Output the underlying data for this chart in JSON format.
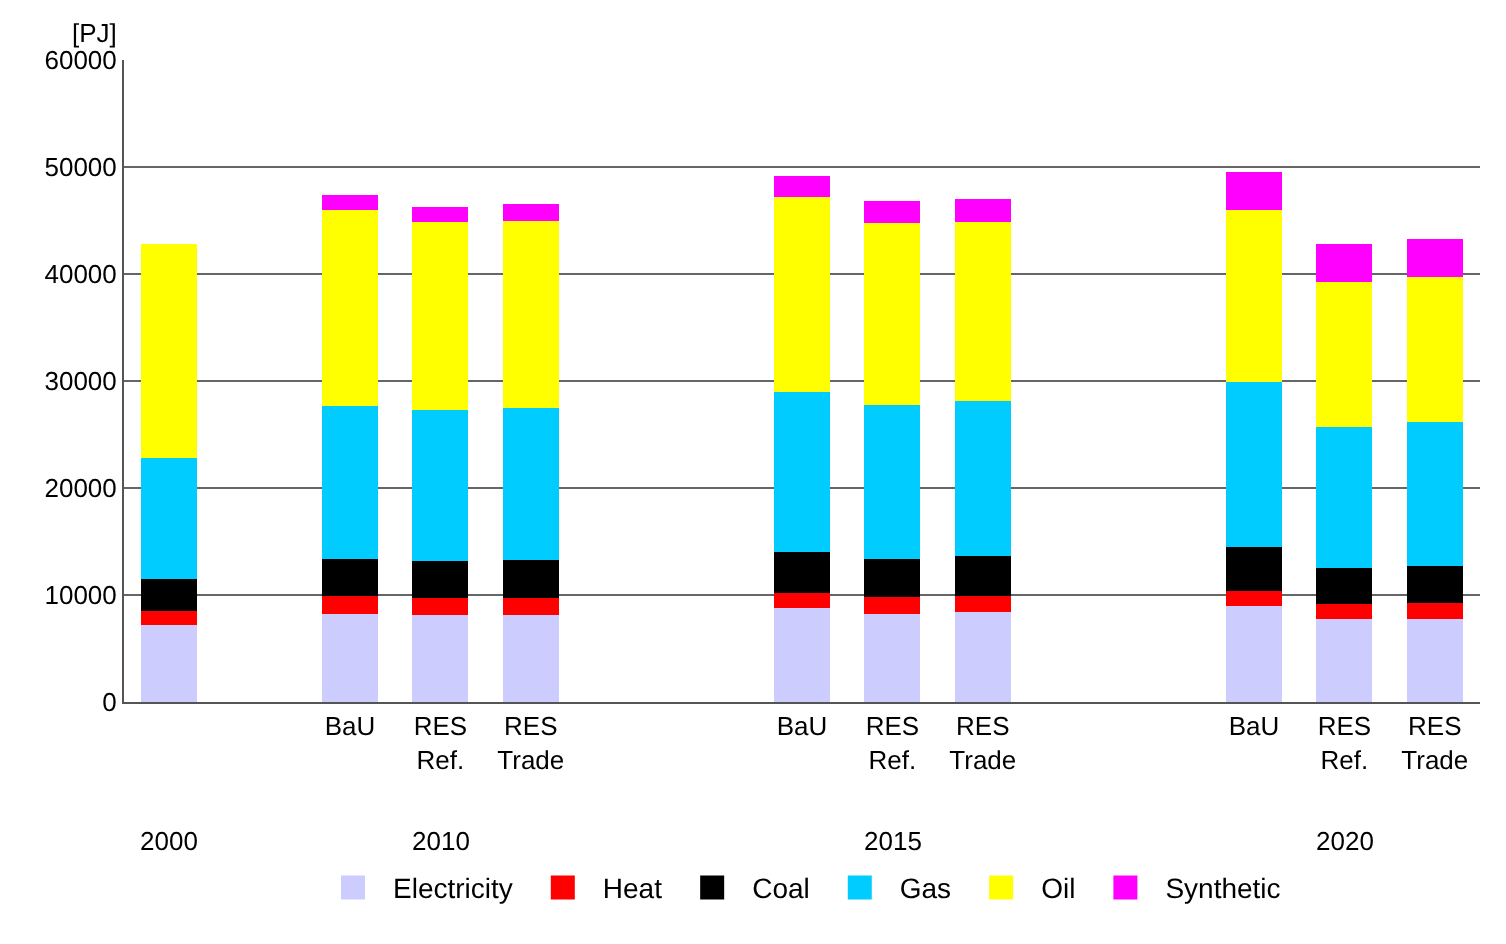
{
  "chart_data": {
    "type": "bar",
    "stacked": true,
    "ylabel": "[PJ]",
    "categories": [
      null,
      null,
      "BaU",
      "RES Ref.",
      "RES Trade",
      null,
      null,
      "BaU",
      "RES Ref.",
      "RES Trade",
      null,
      null,
      "BaU",
      "RES Ref.",
      "RES Trade"
    ],
    "series": [
      {
        "name": "Electricity",
        "color": "#ccccff",
        "values": [
          7200,
          null,
          8250,
          8100,
          8100,
          null,
          null,
          8800,
          8250,
          8400,
          null,
          null,
          9000,
          7800,
          7800
        ]
      },
      {
        "name": "Heat",
        "color": "#ff0000",
        "values": [
          1300,
          null,
          1650,
          1600,
          1600,
          null,
          null,
          1400,
          1550,
          1500,
          null,
          null,
          1400,
          1400,
          1500
        ]
      },
      {
        "name": "Coal",
        "color": "#000000",
        "values": [
          3000,
          null,
          3500,
          3500,
          3600,
          null,
          null,
          3800,
          3600,
          3700,
          null,
          null,
          4100,
          3300,
          3400
        ]
      },
      {
        "name": "Gas",
        "color": "#00ccff",
        "values": [
          11300,
          null,
          14300,
          14100,
          14200,
          null,
          null,
          15000,
          14400,
          14500,
          null,
          null,
          15400,
          13200,
          13500
        ]
      },
      {
        "name": "Oil",
        "color": "#ffff00",
        "values": [
          20000,
          null,
          18300,
          17600,
          17500,
          null,
          null,
          18200,
          17000,
          16800,
          null,
          null,
          16100,
          13600,
          13500
        ]
      },
      {
        "name": "Synthetic",
        "color": "#ff00ff",
        "values": [
          0,
          null,
          1400,
          1400,
          1500,
          null,
          null,
          2000,
          2000,
          2100,
          null,
          null,
          3500,
          3500,
          3600
        ]
      }
    ],
    "annotations": [
      "2000",
      "2010",
      "2015",
      "2020"
    ],
    "ylim": [
      0,
      60000
    ],
    "yticks": [
      0,
      10000,
      20000,
      30000,
      40000,
      50000,
      60000
    ],
    "grid": "y",
    "legend": "bottom"
  }
}
